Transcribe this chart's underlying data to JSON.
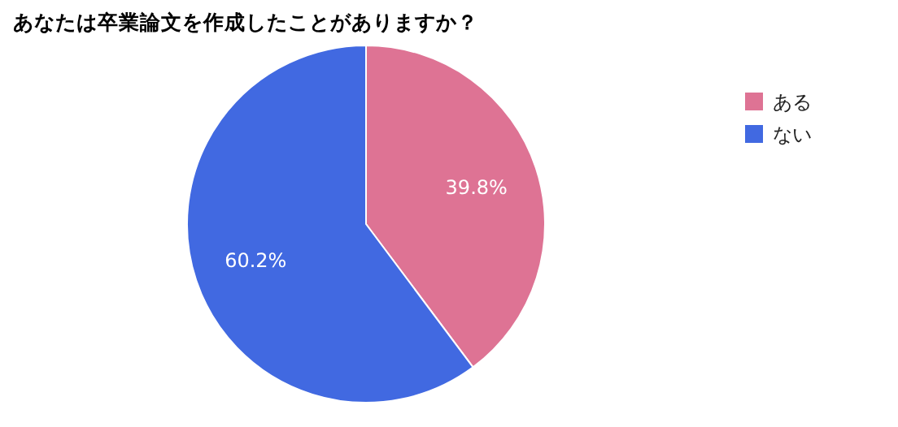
{
  "chart_data": {
    "type": "pie",
    "title": "あなたは卒業論文を作成したことがありますか？",
    "categories": [
      "ある",
      "ない"
    ],
    "values": [
      39.8,
      60.2
    ],
    "colors": [
      "#de7394",
      "#4169e1"
    ],
    "value_labels": [
      "39.8%",
      "60.2%"
    ],
    "legend": "top right"
  }
}
